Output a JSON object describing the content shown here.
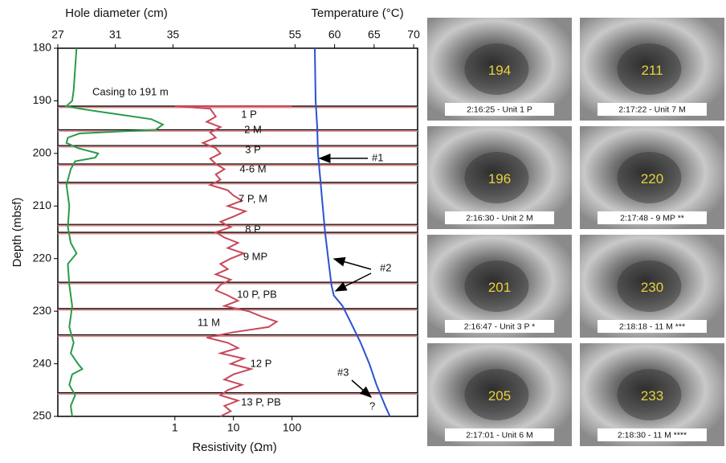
{
  "chart_data": {
    "type": "line",
    "diameter_title": "Hole diameter (cm)",
    "temperature_title": "Temperature (°C)",
    "resistivity_title": "Resistivity (Ωm)",
    "depth_title": "Depth (mbsf)",
    "ylim": [
      180,
      250
    ],
    "yticks": [
      180,
      190,
      200,
      210,
      220,
      230,
      240,
      250
    ],
    "diameter_lim": [
      27,
      52
    ],
    "diameter_ticks": [
      27,
      31,
      35
    ],
    "temperature_lim": [
      25,
      70.5
    ],
    "temperature_ticks": [
      55,
      60,
      65,
      70
    ],
    "resistivity_lim": [
      0.01,
      14000
    ],
    "resistivity_ticks": [
      1,
      10,
      100
    ],
    "resistivity_log": true,
    "series": [
      {
        "name": "Hole diameter",
        "axis": "diameter",
        "color": "#2a9a4a",
        "depth": [
          180,
          184,
          188,
          190,
          191,
          191.5,
          192.5,
          193.5,
          194.5,
          195.5,
          196.2,
          197,
          198,
          199,
          200,
          200.8,
          201.5,
          203,
          206,
          210,
          214,
          217,
          219,
          221,
          225,
          229,
          233,
          236,
          238,
          240,
          241,
          242,
          244,
          246,
          248,
          250
        ],
        "values": [
          28.3,
          28.2,
          28.1,
          28.0,
          27.6,
          28.5,
          31,
          33.5,
          34.3,
          33.8,
          28.5,
          27.7,
          27.6,
          28.4,
          29.8,
          29.6,
          28.2,
          27.9,
          27.6,
          27.8,
          27.7,
          27.9,
          28.3,
          27.7,
          27.8,
          28.0,
          27.8,
          28.1,
          27.9,
          28.4,
          28.7,
          28.0,
          27.8,
          28.2,
          27.9,
          28.0
        ]
      },
      {
        "name": "Resistivity",
        "axis": "resistivity",
        "color": "#c8485a",
        "depth": [
          191,
          191,
          191.5,
          193,
          194,
          195,
          196,
          197,
          198,
          199,
          200,
          201,
          202,
          203,
          204,
          205,
          206,
          207,
          208,
          209,
          210,
          211,
          212,
          213,
          214,
          215,
          216,
          217,
          218,
          219,
          220,
          221,
          222,
          223,
          224,
          225,
          226,
          227,
          228,
          229,
          230,
          231,
          232,
          233,
          234,
          235,
          236,
          237,
          238,
          239,
          240,
          241,
          242,
          243,
          244,
          245,
          246,
          247,
          248,
          249,
          250
        ],
        "values": [
          100,
          1,
          4,
          5,
          3.5,
          6,
          4,
          5,
          3,
          5,
          6,
          4,
          5,
          7,
          5,
          6,
          4,
          8,
          10,
          14,
          8,
          16,
          10,
          6,
          9,
          5,
          7,
          12,
          8,
          15,
          9,
          6,
          8,
          5,
          9,
          6,
          5,
          8,
          12,
          7,
          18,
          30,
          55,
          40,
          10,
          3.5,
          8,
          12,
          6,
          15,
          9,
          20,
          10,
          7,
          14,
          8,
          6,
          12,
          7,
          9,
          6
        ]
      },
      {
        "name": "Temperature",
        "axis": "temperature",
        "color": "#2a52d0",
        "depth": [
          180,
          190,
          195,
          200,
          205,
          210,
          215,
          220,
          225,
          227,
          229,
          232,
          236,
          240,
          244,
          248,
          250
        ],
        "values": [
          57.5,
          57.6,
          57.8,
          57.9,
          58.2,
          58.5,
          58.8,
          59.2,
          59.6,
          59.9,
          61,
          62,
          63.3,
          64.4,
          65.3,
          66.4,
          67
        ]
      }
    ],
    "unit_boundaries": [
      191,
      195.5,
      198.5,
      202,
      205.5,
      213.5,
      215,
      224.5,
      229.5,
      234.5,
      245.5
    ],
    "casing_label": "Casing to 191 m",
    "unit_labels": [
      "1 P",
      "2 M",
      "3 P",
      "4-6 M",
      "7 P, M",
      "8 P",
      "9 MP",
      "10 P, PB",
      "11 M",
      "12 P",
      "13 P, PB"
    ],
    "annotations": [
      "#1",
      "#2",
      "#3",
      "?"
    ]
  },
  "camera_images": [
    {
      "number": "194",
      "caption": "2:16:25 - Unit 1 P"
    },
    {
      "number": "211",
      "caption": "2:17:22 - Unit 7 M"
    },
    {
      "number": "196",
      "caption": "2:16:30 - Unit 2 M"
    },
    {
      "number": "220",
      "caption": "2:17:48 - 9 MP **"
    },
    {
      "number": "201",
      "caption": "2:16:47 - Unit 3 P *"
    },
    {
      "number": "230",
      "caption": "2:18:18 - 11 M ***"
    },
    {
      "number": "205",
      "caption": "2:17:01 - Unit 6 M"
    },
    {
      "number": "233",
      "caption": "2:18:30 - 11 M ****"
    }
  ]
}
